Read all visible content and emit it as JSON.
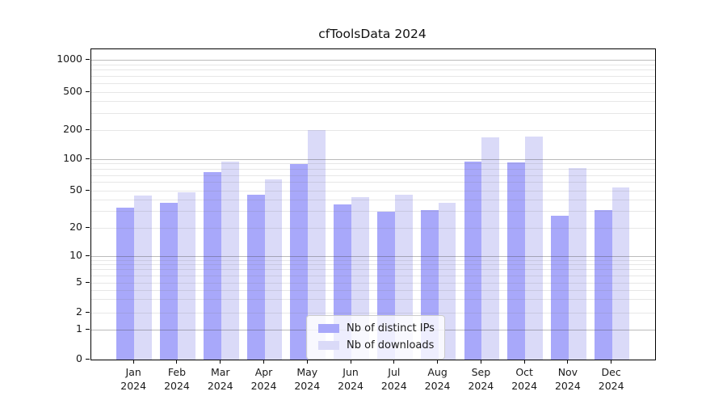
{
  "chart_data": {
    "type": "bar",
    "title": "cfToolsData 2024",
    "categories": [
      {
        "month": "Jan",
        "year": "2024"
      },
      {
        "month": "Feb",
        "year": "2024"
      },
      {
        "month": "Mar",
        "year": "2024"
      },
      {
        "month": "Apr",
        "year": "2024"
      },
      {
        "month": "May",
        "year": "2024"
      },
      {
        "month": "Jun",
        "year": "2024"
      },
      {
        "month": "Jul",
        "year": "2024"
      },
      {
        "month": "Aug",
        "year": "2024"
      },
      {
        "month": "Sep",
        "year": "2024"
      },
      {
        "month": "Oct",
        "year": "2024"
      },
      {
        "month": "Nov",
        "year": "2024"
      },
      {
        "month": "Dec",
        "year": "2024"
      }
    ],
    "series": [
      {
        "name": "Nb of distinct IPs",
        "color": "#a8a8fa",
        "values": [
          33,
          37,
          75,
          45,
          90,
          36,
          30,
          31,
          95,
          93,
          27,
          31
        ]
      },
      {
        "name": "Nb of downloads",
        "color": "#dadaf8",
        "values": [
          44,
          48,
          94,
          64,
          200,
          43,
          45,
          37,
          168,
          173,
          82,
          54
        ]
      }
    ],
    "y_axis": {
      "ticks": [
        0,
        1,
        2,
        5,
        10,
        20,
        50,
        100,
        200,
        500,
        1000
      ],
      "scale": "log-like",
      "range_top": 1275
    },
    "x_axis_label_lines": 2,
    "grid": true,
    "legend": {
      "position": "inside-bottom-center",
      "entries": [
        "Nb of distinct IPs",
        "Nb of downloads"
      ]
    }
  }
}
